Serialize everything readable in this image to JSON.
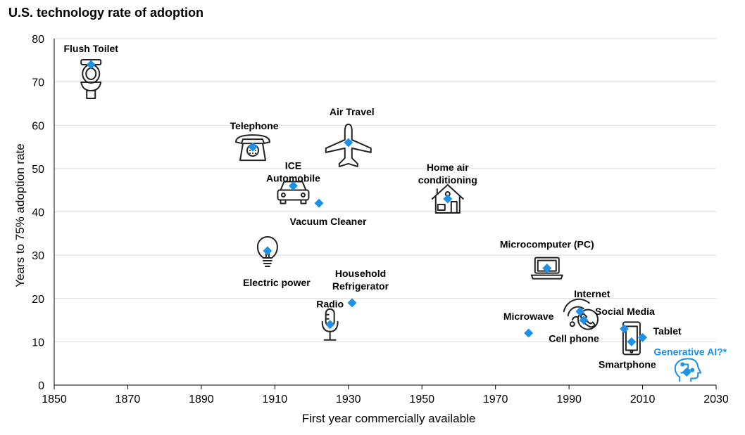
{
  "chart_data": {
    "type": "scatter",
    "title": "U.S. technology rate of adoption",
    "xlabel": "First year commercially available",
    "ylabel": "Years to 75% adoption rate",
    "xlim": [
      1850,
      2030
    ],
    "ylim": [
      0,
      80
    ],
    "xticks": [
      1850,
      1870,
      1890,
      1910,
      1930,
      1950,
      1970,
      1990,
      2010,
      2030
    ],
    "yticks": [
      0,
      10,
      20,
      30,
      40,
      50,
      60,
      70,
      80
    ],
    "grid": "horizontal",
    "marker_color": "#1e90e6",
    "points": [
      {
        "label": "Flush Toilet",
        "x": 1860,
        "y": 74,
        "icon": "toilet-icon"
      },
      {
        "label": "Telephone",
        "x": 1904,
        "y": 55,
        "icon": "telephone-icon"
      },
      {
        "label": "Air Travel",
        "x": 1930,
        "y": 56,
        "icon": "airplane-icon"
      },
      {
        "label": "ICE Automobile",
        "x": 1915,
        "y": 46,
        "icon": "car-icon"
      },
      {
        "label": "Vacuum Cleaner",
        "x": 1922,
        "y": 42,
        "icon": ""
      },
      {
        "label": "Home air conditioning",
        "x": 1957,
        "y": 43,
        "icon": "house-icon"
      },
      {
        "label": "Electric power",
        "x": 1908,
        "y": 31,
        "icon": "lightbulb-icon"
      },
      {
        "label": "Household Refrigerator",
        "x": 1931,
        "y": 19,
        "icon": ""
      },
      {
        "label": "Radio",
        "x": 1925,
        "y": 14,
        "icon": "microphone-icon"
      },
      {
        "label": "Microcomputer (PC)",
        "x": 1984,
        "y": 27,
        "icon": "laptop-icon"
      },
      {
        "label": "Internet",
        "x": 1993,
        "y": 17,
        "icon": "wifi-icon"
      },
      {
        "label": "Cell phone",
        "x": 1994,
        "y": 15,
        "icon": "phone-handset-icon"
      },
      {
        "label": "Microwave",
        "x": 1979,
        "y": 12,
        "icon": ""
      },
      {
        "label": "Social Media",
        "x": 2005,
        "y": 13,
        "icon": ""
      },
      {
        "label": "Tablet",
        "x": 2010,
        "y": 11,
        "icon": ""
      },
      {
        "label": "Smartphone",
        "x": 2007,
        "y": 10,
        "icon": "smartphone-icon"
      },
      {
        "label": "Generative AI?*",
        "x": 2022,
        "y": 3,
        "icon": "ai-head-icon"
      }
    ]
  }
}
